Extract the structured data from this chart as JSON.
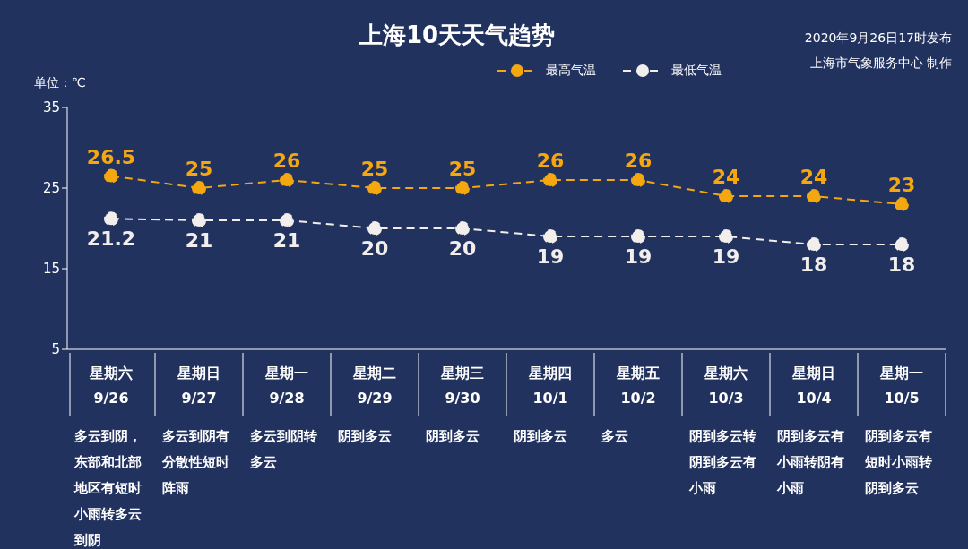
{
  "chart_data": {
    "type": "line",
    "title": "上海10天天气趋势",
    "ylabel": "单位：℃",
    "categories": [
      "星期六\n9/26",
      "星期日\n9/27",
      "星期一\n9/28",
      "星期二\n9/29",
      "星期三\n9/30",
      "星期四\n10/1",
      "星期五\n10/2",
      "星期六\n10/3",
      "星期日\n10/4",
      "星期一\n10/5"
    ],
    "series": [
      {
        "name": "最高气温",
        "color": "#f5a70f",
        "values": [
          26.5,
          25,
          26,
          25,
          25,
          26,
          26,
          24,
          24,
          23
        ]
      },
      {
        "name": "最低气温",
        "color": "#f2eeec",
        "values": [
          21.2,
          21,
          21,
          20,
          20,
          19,
          19,
          19,
          18,
          18
        ]
      }
    ],
    "ylim": [
      5,
      35
    ],
    "yticks": [
      5,
      15,
      25,
      35
    ],
    "grid": false,
    "legend": "top",
    "marker": "circle",
    "line_style": "dashed",
    "data_labels": true,
    "annotations": [
      "多云到阴，东部和北部地区有短时小雨转多云到阴",
      "多云到阴有分散性短时阵雨",
      "多云到阴转多云",
      "阴到多云",
      "阴到多云",
      "阴到多云",
      "多云",
      "阴到多云转阴到多云有小雨",
      "阴到多云有小雨转阴有小雨",
      "阴到多云有短时小雨转阴到多云",
      "2020年9月26日17时发布",
      "上海市气象服务中心 制作"
    ]
  }
}
